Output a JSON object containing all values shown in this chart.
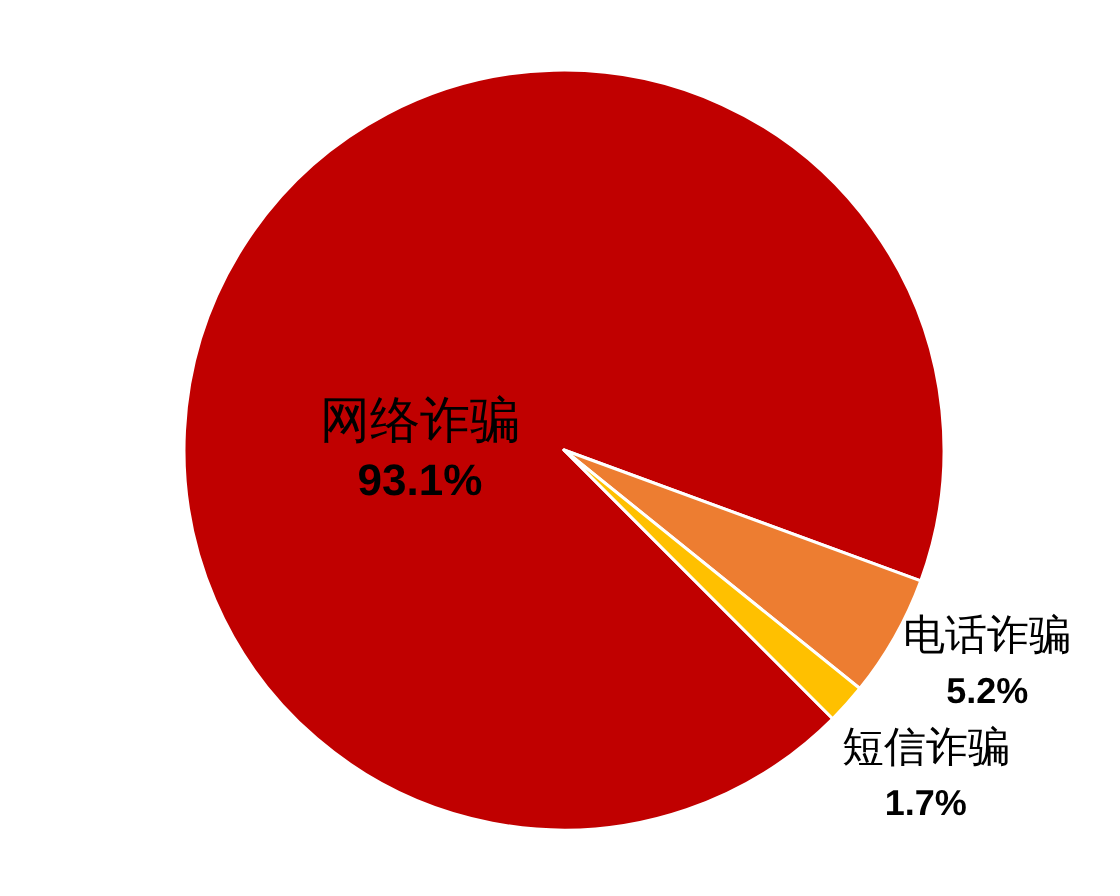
{
  "chart_data": {
    "type": "pie",
    "categories": [
      "网络诈骗",
      "电话诈骗",
      "短信诈骗"
    ],
    "values": [
      93.1,
      5.2,
      1.7
    ],
    "colors": [
      "#c00000",
      "#ed7d31",
      "#ffc000"
    ],
    "value_labels": [
      "93.1%",
      "5.2%",
      "1.7%"
    ]
  }
}
